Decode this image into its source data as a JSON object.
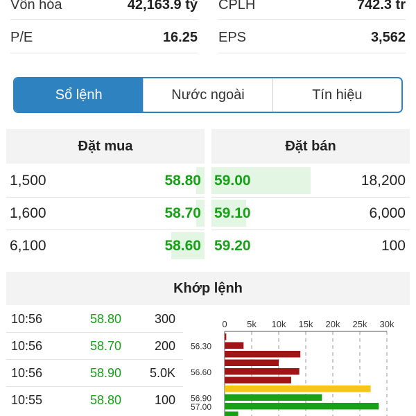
{
  "stats": {
    "rows": [
      {
        "left_label": "Vốn hóa",
        "left_value": "42,163.9 tỷ",
        "right_label": "CPLH",
        "right_value": "742.3 tr"
      },
      {
        "left_label": "P/E",
        "left_value": "16.25",
        "right_label": "EPS",
        "right_value": "3,562"
      }
    ]
  },
  "tabs": [
    {
      "label": "Sổ lệnh",
      "active": true
    },
    {
      "label": "Nước ngoài",
      "active": false
    },
    {
      "label": "Tín hiệu",
      "active": false
    }
  ],
  "orderbook": {
    "buy_title": "Đặt mua",
    "sell_title": "Đặt bán",
    "rows": [
      {
        "buy_volume": "1,500",
        "buy_price": "58.80",
        "sell_price": "59.00",
        "sell_volume": "18,200"
      },
      {
        "buy_volume": "1,600",
        "buy_price": "58.70",
        "sell_price": "59.10",
        "sell_volume": "6,000"
      },
      {
        "buy_volume": "6,100",
        "buy_price": "58.60",
        "sell_price": "59.20",
        "sell_volume": "100"
      }
    ]
  },
  "matched": {
    "title": "Khớp lệnh",
    "rows": [
      {
        "time": "10:56",
        "price": "58.80",
        "volume": "300"
      },
      {
        "time": "10:56",
        "price": "58.70",
        "volume": "200"
      },
      {
        "time": "10:56",
        "price": "58.90",
        "volume": "5.0K"
      },
      {
        "time": "10:55",
        "price": "58.80",
        "volume": "100"
      }
    ]
  },
  "colors": {
    "accent": "#2f82c0",
    "up": "#18a018",
    "down": "#a01515",
    "reference": "#f5c518"
  },
  "chart_data": {
    "type": "bar",
    "orientation": "horizontal",
    "x_ticks": [
      "0",
      "5k",
      "10k",
      "15k",
      "20k",
      "25k",
      "30k"
    ],
    "xlim": [
      0,
      30000
    ],
    "y_labels": [
      "56.30",
      "56.60",
      "56.90",
      "57.00"
    ],
    "bars": [
      {
        "price": 56.2,
        "value": 300,
        "color": "down"
      },
      {
        "price": 56.3,
        "value": 3500,
        "color": "down"
      },
      {
        "price": 56.4,
        "value": 14000,
        "color": "down"
      },
      {
        "price": 56.5,
        "value": 10000,
        "color": "down"
      },
      {
        "price": 56.6,
        "value": 13800,
        "color": "down"
      },
      {
        "price": 56.7,
        "value": 12300,
        "color": "down"
      },
      {
        "price": 56.8,
        "value": 27000,
        "color": "reference"
      },
      {
        "price": 56.9,
        "value": 18000,
        "color": "up"
      },
      {
        "price": 57.0,
        "value": 28500,
        "color": "up"
      },
      {
        "price": 57.1,
        "value": 2500,
        "color": "up"
      }
    ]
  }
}
